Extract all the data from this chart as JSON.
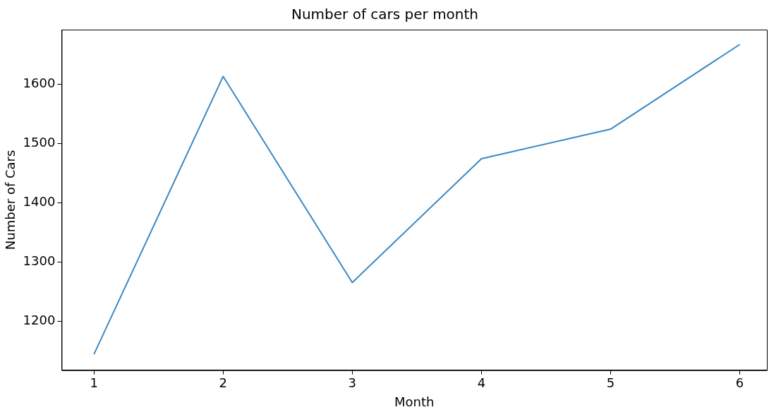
{
  "chart_data": {
    "type": "line",
    "title": "Number of cars per month",
    "xlabel": "Month",
    "ylabel": "Number of Cars",
    "x": [
      1,
      2,
      3,
      4,
      5,
      6
    ],
    "series": [
      {
        "color": "#3b88c3",
        "values": [
          1144,
          1613,
          1265,
          1474,
          1524,
          1667
        ]
      }
    ],
    "xlim": [
      0.75,
      6.21
    ],
    "xticks": [
      1,
      2,
      3,
      4,
      5,
      6
    ],
    "ylim": [
      1117,
      1692
    ],
    "yticks": [
      1200,
      1300,
      1400,
      1500,
      1600
    ],
    "grid": false,
    "legend": false,
    "marker": "none",
    "line_style": "solid"
  }
}
